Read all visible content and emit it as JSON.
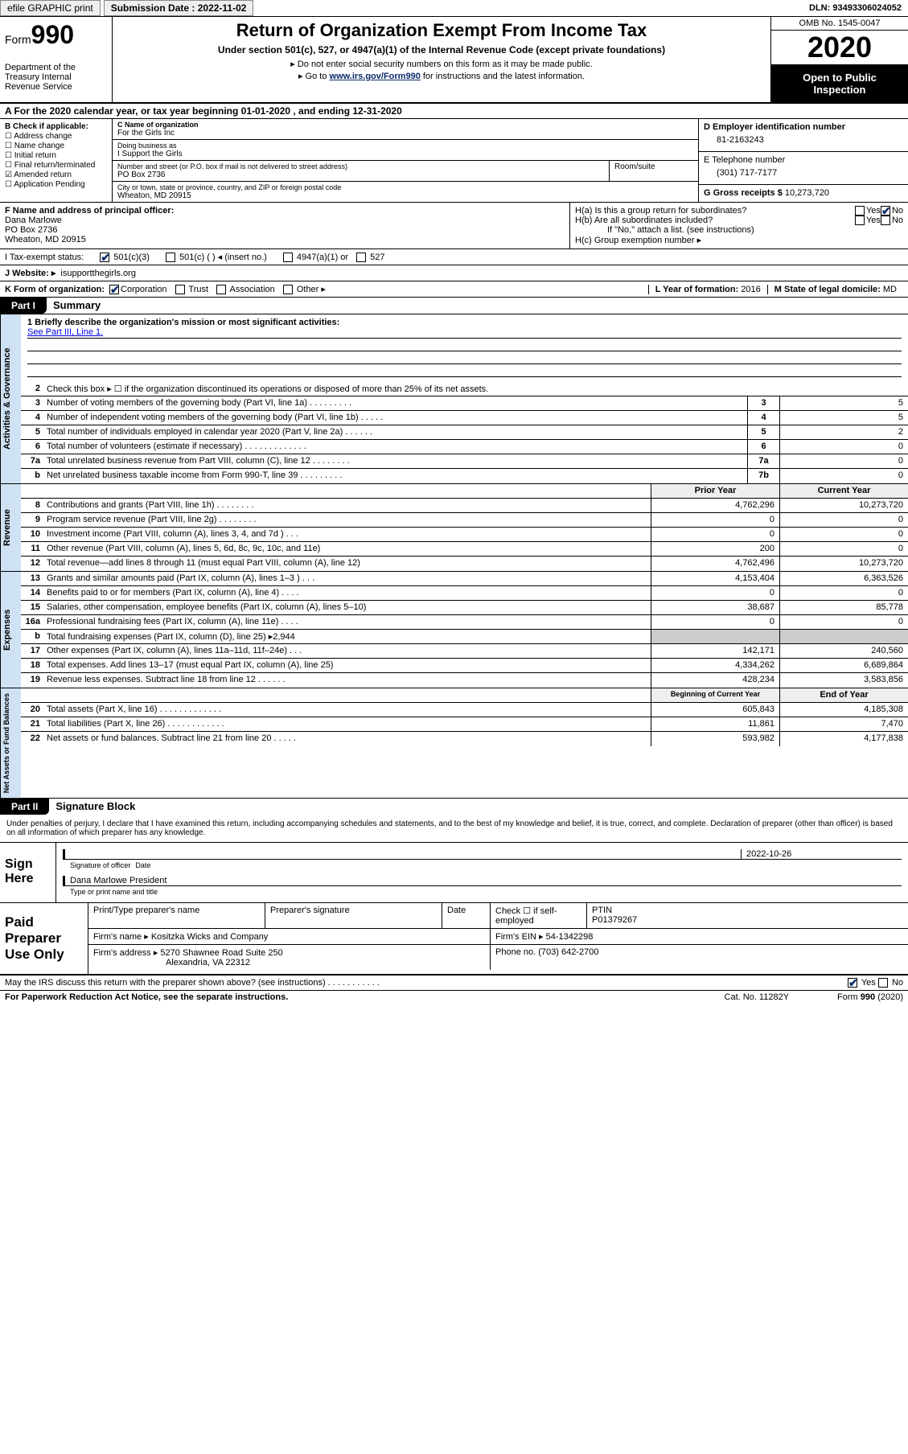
{
  "topbar": {
    "efile": "efile GRAPHIC print",
    "submission": "Submission Date : 2022-11-02",
    "dln": "DLN: 93493306024052"
  },
  "header": {
    "form_label": "Form",
    "form_num": "990",
    "dept": "Department of the Treasury Internal Revenue Service",
    "title": "Return of Organization Exempt From Income Tax",
    "sub": "Under section 501(c), 527, or 4947(a)(1) of the Internal Revenue Code (except private foundations)",
    "note1": "▸ Do not enter social security numbers on this form as it may be made public.",
    "note2_pre": "▸ Go to ",
    "note2_link": "www.irs.gov/Form990",
    "note2_post": " for instructions and the latest information.",
    "omb": "OMB No. 1545-0047",
    "year": "2020",
    "open": "Open to Public Inspection"
  },
  "line_a": "A For the 2020 calendar year, or tax year beginning 01-01-2020   , and ending 12-31-2020",
  "col_b": {
    "hdr": "B Check if applicable:",
    "opts": [
      "☐ Address change",
      "☐ Name change",
      "☐ Initial return",
      "☐ Final return/terminated",
      "☑ Amended return",
      "☐ Application Pending"
    ]
  },
  "col_c": {
    "name_lbl": "C Name of organization",
    "name": "For the Girls Inc",
    "dba_lbl": "Doing business as",
    "dba": "I Support the Girls",
    "street_lbl": "Number and street (or P.O. box if mail is not delivered to street address)",
    "street": "PO Box 2736",
    "room_lbl": "Room/suite",
    "city_lbl": "City or town, state or province, country, and ZIP or foreign postal code",
    "city": "Wheaton, MD  20915"
  },
  "col_d": {
    "ein_lbl": "D Employer identification number",
    "ein": "81-2163243",
    "tel_lbl": "E Telephone number",
    "tel": "(301) 717-7177",
    "gross_lbl": "G Gross receipts $",
    "gross": "10,273,720"
  },
  "col_f": {
    "lbl": "F  Name and address of principal officer:",
    "name": "Dana Marlowe",
    "addr1": "PO Box 2736",
    "addr2": "Wheaton, MD  20915"
  },
  "col_h": {
    "ha": "H(a)  Is this a group return for subordinates?",
    "hb": "H(b)  Are all subordinates included?",
    "hb_note": "If \"No,\" attach a list. (see instructions)",
    "hc": "H(c)  Group exemption number ▸",
    "yes": "Yes",
    "no": "No"
  },
  "tax_status": {
    "lbl": "I   Tax-exempt status:",
    "o1": "501(c)(3)",
    "o2": "501(c) (   ) ◂ (insert no.)",
    "o3": "4947(a)(1) or",
    "o4": "527"
  },
  "website": {
    "lbl": "J   Website: ▸",
    "val": "isupportthegirls.org"
  },
  "line_k": {
    "lbl": "K Form of organization:",
    "corp": "Corporation",
    "trust": "Trust",
    "assoc": "Association",
    "other": "Other ▸",
    "l_lbl": "L Year of formation:",
    "l_val": "2016",
    "m_lbl": "M State of legal domicile:",
    "m_val": "MD"
  },
  "part1": {
    "tag": "Part I",
    "title": "Summary"
  },
  "mission": {
    "q": "1  Briefly describe the organization's mission or most significant activities:",
    "link": "See Part III, Line 1."
  },
  "sec_ag": {
    "tab": "Activities & Governance",
    "r2": "Check this box ▸ ☐  if the organization discontinued its operations or disposed of more than 25% of its net assets.",
    "rows": [
      {
        "n": "3",
        "t": "Number of voting members of the governing body (Part VI, line 1a)   .   .   .   .   .   .   .   .   .",
        "c": "3",
        "v": "5"
      },
      {
        "n": "4",
        "t": "Number of independent voting members of the governing body (Part VI, line 1b)   .   .   .   .   .",
        "c": "4",
        "v": "5"
      },
      {
        "n": "5",
        "t": "Total number of individuals employed in calendar year 2020 (Part V, line 2a)   .   .   .   .   .   .",
        "c": "5",
        "v": "2"
      },
      {
        "n": "6",
        "t": "Total number of volunteers (estimate if necessary)   .   .   .   .   .   .   .   .   .   .   .   .   .",
        "c": "6",
        "v": "0"
      },
      {
        "n": "7a",
        "t": "Total unrelated business revenue from Part VIII, column (C), line 12   .   .   .   .   .   .   .   .",
        "c": "7a",
        "v": "0"
      },
      {
        "n": "b",
        "t": "Net unrelated business taxable income from Form 990-T, line 39   .   .   .   .   .   .   .   .   .",
        "c": "7b",
        "v": "0"
      }
    ]
  },
  "sec_rev": {
    "tab": "Revenue",
    "hdr_prior": "Prior Year",
    "hdr_cur": "Current Year",
    "rows": [
      {
        "n": "8",
        "t": "Contributions and grants (Part VIII, line 1h)   .   .   .   .   .   .   .   .",
        "p": "4,762,296",
        "c": "10,273,720"
      },
      {
        "n": "9",
        "t": "Program service revenue (Part VIII, line 2g)   .   .   .   .   .   .   .   .",
        "p": "0",
        "c": "0"
      },
      {
        "n": "10",
        "t": "Investment income (Part VIII, column (A), lines 3, 4, and 7d )   .   .   .",
        "p": "0",
        "c": "0"
      },
      {
        "n": "11",
        "t": "Other revenue (Part VIII, column (A), lines 5, 6d, 8c, 9c, 10c, and 11e)",
        "p": "200",
        "c": "0"
      },
      {
        "n": "12",
        "t": "Total revenue—add lines 8 through 11 (must equal Part VIII, column (A), line 12)",
        "p": "4,762,496",
        "c": "10,273,720"
      }
    ]
  },
  "sec_exp": {
    "tab": "Expenses",
    "rows": [
      {
        "n": "13",
        "t": "Grants and similar amounts paid (Part IX, column (A), lines 1–3 )   .   .   .",
        "p": "4,153,404",
        "c": "6,363,526"
      },
      {
        "n": "14",
        "t": "Benefits paid to or for members (Part IX, column (A), line 4)   .   .   .   .",
        "p": "0",
        "c": "0"
      },
      {
        "n": "15",
        "t": "Salaries, other compensation, employee benefits (Part IX, column (A), lines 5–10)",
        "p": "38,687",
        "c": "85,778"
      },
      {
        "n": "16a",
        "t": "Professional fundraising fees (Part IX, column (A), line 11e)   .   .   .   .",
        "p": "0",
        "c": "0"
      },
      {
        "n": "b",
        "t": "Total fundraising expenses (Part IX, column (D), line 25) ▸2,944",
        "p": "",
        "c": "",
        "grey": true
      },
      {
        "n": "17",
        "t": "Other expenses (Part IX, column (A), lines 11a–11d, 11f–24e)   .   .   .",
        "p": "142,171",
        "c": "240,560"
      },
      {
        "n": "18",
        "t": "Total expenses. Add lines 13–17 (must equal Part IX, column (A), line 25)",
        "p": "4,334,262",
        "c": "6,689,864"
      },
      {
        "n": "19",
        "t": "Revenue less expenses. Subtract line 18 from line 12   .   .   .   .   .   .",
        "p": "428,234",
        "c": "3,583,856"
      }
    ]
  },
  "sec_net": {
    "tab": "Net Assets or Fund Balances",
    "hdr_beg": "Beginning of Current Year",
    "hdr_end": "End of Year",
    "rows": [
      {
        "n": "20",
        "t": "Total assets (Part X, line 16)   .   .   .   .   .   .   .   .   .   .   .   .   .",
        "p": "605,843",
        "c": "4,185,308"
      },
      {
        "n": "21",
        "t": "Total liabilities (Part X, line 26)   .   .   .   .   .   .   .   .   .   .   .   .",
        "p": "11,861",
        "c": "7,470"
      },
      {
        "n": "22",
        "t": "Net assets or fund balances. Subtract line 21 from line 20   .   .   .   .   .",
        "p": "593,982",
        "c": "4,177,838"
      }
    ]
  },
  "part2": {
    "tag": "Part II",
    "title": "Signature Block"
  },
  "penalty": "Under penalties of perjury, I declare that I have examined this return, including accompanying schedules and statements, and to the best of my knowledge and belief, it is true, correct, and complete. Declaration of preparer (other than officer) is based on all information of which preparer has any knowledge.",
  "sign": {
    "lbl": "Sign Here",
    "sig_lbl": "Signature of officer",
    "date": "2022-10-26",
    "date_lbl": "Date",
    "name": "Dana Marlowe  President",
    "name_lbl": "Type or print name and title"
  },
  "paid": {
    "lbl": "Paid Preparer Use Only",
    "h1": "Print/Type preparer's name",
    "h2": "Preparer's signature",
    "h3": "Date",
    "h4": "Check ☐ if self-employed",
    "h5_lbl": "PTIN",
    "h5": "P01379267",
    "firm_lbl": "Firm's name    ▸",
    "firm": "Kositzka Wicks and Company",
    "ein_lbl": "Firm's EIN ▸",
    "ein": "54-1342298",
    "addr_lbl": "Firm's address ▸",
    "addr1": "5270 Shawnee Road Suite 250",
    "addr2": "Alexandria, VA  22312",
    "phone_lbl": "Phone no.",
    "phone": "(703) 642-2700"
  },
  "discuss": {
    "q": "May the IRS discuss this return with the preparer shown above? (see instructions)   .   .   .   .   .   .   .   .   .   .   .",
    "yes": "Yes",
    "no": "No"
  },
  "footer": {
    "left": "For Paperwork Reduction Act Notice, see the separate instructions.",
    "mid": "Cat. No. 11282Y",
    "right": "Form 990 (2020)"
  }
}
